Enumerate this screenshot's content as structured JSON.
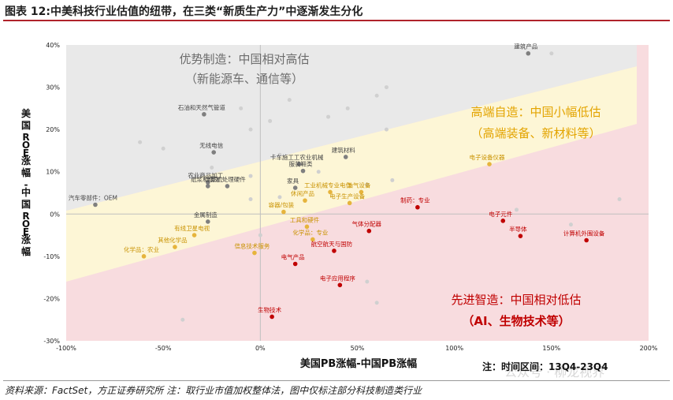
{
  "header": {
    "title": "图表 12:中美科技行业估值的纽带，在三类“新质生产力”中逐渐发生分化"
  },
  "footer": {
    "source": "资料来源：FactSet，方正证券研究所 注：取行业市值加权整体法，图中仅标注部分科技制造类行业"
  },
  "note": "注：时间区间：13Q4-23Q4",
  "watermark": "公众号 · 柳龙视界",
  "colors": {
    "grey_zone": "#e9e9e9",
    "yellow_zone": "#fdf6d6",
    "pink_zone": "#f8dcdf",
    "grey_label": "#6d6d6d",
    "yellow_label": "#e3a400",
    "red_label": "#c00000",
    "grey_point": "#7f7f7f",
    "yellow_point": "#e6b43c",
    "red_point": "#c00000",
    "faint_point": "#d0d0d0"
  },
  "chart_data": {
    "type": "scatter",
    "xlabel": "美国PB涨幅-中国PB涨幅",
    "ylabel": "美国ROE涨幅-中国ROE涨幅",
    "xlim": [
      -1.0,
      2.0
    ],
    "ylim": [
      -0.3,
      0.4
    ],
    "x_ticks": [
      -1.0,
      -0.5,
      0,
      0.5,
      1.0,
      1.5,
      2.0
    ],
    "x_tick_labels": [
      "-100%",
      "-50%",
      "0%",
      "50%",
      "100%",
      "150%",
      "200%"
    ],
    "y_ticks": [
      -0.3,
      -0.2,
      -0.1,
      0,
      0.1,
      0.2,
      0.3,
      0.4
    ],
    "y_tick_labels": [
      "-30%",
      "-20%",
      "-10%",
      "0%",
      "10%",
      "20%",
      "30%",
      "40%"
    ],
    "zones": [
      {
        "name": "grey",
        "title": "优势制造：中国相对高估",
        "subtitle": "（新能源车、通信等）"
      },
      {
        "name": "yellow",
        "title": "高端自造：中国小幅低估",
        "subtitle": "（高端装备、新材料等）"
      },
      {
        "name": "red",
        "title": "先进智造：中国相对低估",
        "subtitle": "（AI、生物技术等）"
      }
    ],
    "labeled_points": [
      {
        "label": "建筑产品",
        "x": 1.38,
        "y": 0.38,
        "group": "grey"
      },
      {
        "label": "石油和天然气管道",
        "x": -0.29,
        "y": 0.236,
        "group": "grey"
      },
      {
        "label": "无线电信",
        "x": -0.24,
        "y": 0.146,
        "group": "grey"
      },
      {
        "label": "农业商品加工",
        "x": -0.27,
        "y": 0.075,
        "group": "grey"
      },
      {
        "label": "纸浆和纸张",
        "x": -0.27,
        "y": 0.066,
        "group": "grey"
      },
      {
        "label": "计算机处理硬件",
        "x": -0.17,
        "y": 0.066,
        "group": "grey"
      },
      {
        "label": "汽车零部件：OEM",
        "x": -0.85,
        "y": 0.022,
        "group": "grey"
      },
      {
        "label": "金属制造",
        "x": -0.27,
        "y": -0.018,
        "group": "grey"
      },
      {
        "label": "卡车施工工农业机械",
        "x": 0.2,
        "y": 0.118,
        "group": "grey"
      },
      {
        "label": "服装鞋类",
        "x": 0.22,
        "y": 0.102,
        "group": "grey"
      },
      {
        "label": "建筑材料",
        "x": 0.44,
        "y": 0.135,
        "group": "grey"
      },
      {
        "label": "家具",
        "x": 0.18,
        "y": 0.062,
        "group": "grey"
      },
      {
        "label": "工业机械专业电信",
        "x": 0.36,
        "y": 0.052,
        "group": "yellow"
      },
      {
        "label": "电子设备仪器",
        "x": 1.18,
        "y": 0.118,
        "group": "yellow"
      },
      {
        "label": "油气设备",
        "x": 0.52,
        "y": 0.052,
        "group": "yellow"
      },
      {
        "label": "休闲产品",
        "x": 0.23,
        "y": 0.032,
        "group": "yellow"
      },
      {
        "label": "电子生产设备",
        "x": 0.46,
        "y": 0.026,
        "group": "yellow"
      },
      {
        "label": "容器/包装",
        "x": 0.12,
        "y": 0.005,
        "group": "yellow"
      },
      {
        "label": "有线卫星电视",
        "x": -0.34,
        "y": -0.05,
        "group": "yellow"
      },
      {
        "label": "其他化学品",
        "x": -0.44,
        "y": -0.078,
        "group": "yellow"
      },
      {
        "label": "化学品：农业",
        "x": -0.6,
        "y": -0.1,
        "group": "yellow"
      },
      {
        "label": "工具和硬件",
        "x": 0.24,
        "y": -0.03,
        "group": "yellow"
      },
      {
        "label": "化学品：专业",
        "x": 0.27,
        "y": -0.06,
        "group": "yellow"
      },
      {
        "label": "信息技术服务",
        "x": -0.03,
        "y": -0.092,
        "group": "yellow"
      },
      {
        "label": "制药：专业",
        "x": 0.81,
        "y": 0.016,
        "group": "red"
      },
      {
        "label": "电子元件",
        "x": 1.25,
        "y": -0.016,
        "group": "red"
      },
      {
        "label": "半导体",
        "x": 1.34,
        "y": -0.052,
        "group": "red"
      },
      {
        "label": "计算机外围设备",
        "x": 1.68,
        "y": -0.062,
        "group": "red"
      },
      {
        "label": "气体分配器",
        "x": 0.56,
        "y": -0.04,
        "group": "red"
      },
      {
        "label": "航空航天与国防",
        "x": 0.38,
        "y": -0.087,
        "group": "red"
      },
      {
        "label": "电气产品",
        "x": 0.18,
        "y": -0.118,
        "group": "red"
      },
      {
        "label": "电子应用程序",
        "x": 0.41,
        "y": -0.168,
        "group": "red"
      },
      {
        "label": "生物技术",
        "x": 0.06,
        "y": -0.243,
        "group": "red"
      }
    ],
    "unlabeled_points": [
      {
        "x": 1.5,
        "y": 0.38
      },
      {
        "x": -0.1,
        "y": 0.25
      },
      {
        "x": -0.05,
        "y": 0.2
      },
      {
        "x": 0.05,
        "y": 0.22
      },
      {
        "x": 0.15,
        "y": 0.27
      },
      {
        "x": 0.35,
        "y": 0.23
      },
      {
        "x": 0.45,
        "y": 0.25
      },
      {
        "x": 0.6,
        "y": 0.28
      },
      {
        "x": 0.65,
        "y": 0.3
      },
      {
        "x": -0.62,
        "y": 0.17
      },
      {
        "x": -0.5,
        "y": 0.155
      },
      {
        "x": 0.65,
        "y": 0.2
      },
      {
        "x": 0.1,
        "y": 0.14
      },
      {
        "x": -0.05,
        "y": 0.09
      },
      {
        "x": 0.1,
        "y": 0.04
      },
      {
        "x": 0.55,
        "y": 0.07
      },
      {
        "x": 0.68,
        "y": 0.08
      },
      {
        "x": 1.32,
        "y": 0.01
      },
      {
        "x": 1.6,
        "y": -0.025
      },
      {
        "x": 1.85,
        "y": 0.035
      },
      {
        "x": 0.55,
        "y": -0.16
      },
      {
        "x": 0.6,
        "y": -0.21
      },
      {
        "x": -0.4,
        "y": -0.25
      },
      {
        "x": 0.0,
        "y": -0.05
      },
      {
        "x": -0.05,
        "y": 0.035
      },
      {
        "x": -0.25,
        "y": 0.11
      },
      {
        "x": 0.3,
        "y": 0.1
      }
    ]
  }
}
